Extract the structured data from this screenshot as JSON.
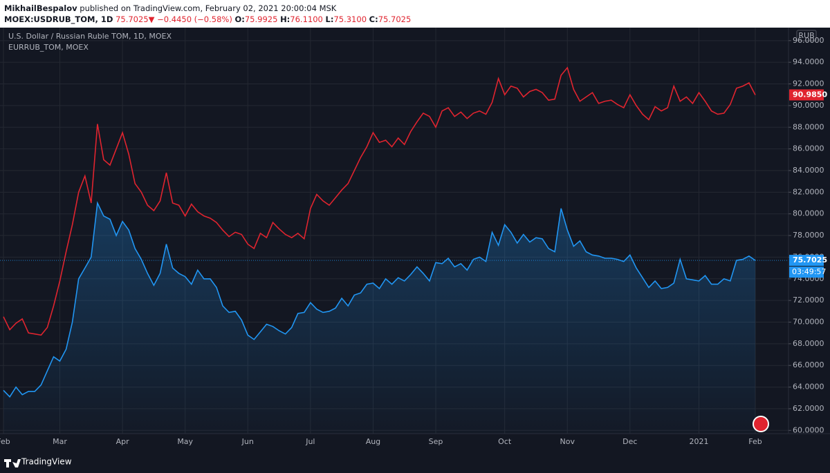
{
  "header": {
    "author": "MikhailBespalov",
    "published": "published on TradingView.com, February 02, 2021 20:00:04 MSK",
    "symbol": "MOEX:USDRUB_TOM, 1D",
    "last": "75.7025",
    "arrow": "▼",
    "change": "−0.4450 (−0.58%)",
    "ohlc": [
      {
        "label": "O:",
        "value": "75.9925"
      },
      {
        "label": "H:",
        "value": "76.1100"
      },
      {
        "label": "L:",
        "value": "75.3100"
      },
      {
        "label": "C:",
        "value": "75.7025"
      }
    ]
  },
  "footer": {
    "brand": "TradingView"
  },
  "chart_data": {
    "type": "line",
    "currency": "RUB",
    "countdown": "03:49:57",
    "categories": [
      "Feb",
      null,
      null,
      null,
      null,
      null,
      null,
      null,
      null,
      "Mar",
      null,
      null,
      null,
      null,
      null,
      null,
      null,
      null,
      null,
      "Apr",
      null,
      null,
      null,
      null,
      null,
      null,
      null,
      null,
      null,
      "May",
      null,
      null,
      null,
      null,
      null,
      null,
      null,
      null,
      null,
      "Jun",
      null,
      null,
      null,
      null,
      null,
      null,
      null,
      null,
      null,
      "Jul",
      null,
      null,
      null,
      null,
      null,
      null,
      null,
      null,
      null,
      "Aug",
      null,
      null,
      null,
      null,
      null,
      null,
      null,
      null,
      null,
      "Sep",
      null,
      null,
      null,
      null,
      null,
      null,
      null,
      null,
      null,
      null,
      "Oct",
      null,
      null,
      null,
      null,
      null,
      null,
      null,
      null,
      null,
      "Nov",
      null,
      null,
      null,
      null,
      null,
      null,
      null,
      null,
      null,
      "Dec",
      null,
      null,
      null,
      null,
      null,
      null,
      null,
      null,
      null,
      null,
      "2021",
      null,
      null,
      null,
      null,
      null,
      null,
      null,
      null,
      "Feb"
    ],
    "ylim": [
      59.7,
      97.2
    ],
    "yticks": [
      {
        "value": 60,
        "label": "60.0000"
      },
      {
        "value": 62,
        "label": "62.0000"
      },
      {
        "value": 64,
        "label": "64.0000"
      },
      {
        "value": 66,
        "label": "66.0000"
      },
      {
        "value": 68,
        "label": "68.0000"
      },
      {
        "value": 70,
        "label": "70.0000"
      },
      {
        "value": 72,
        "label": "72.0000"
      },
      {
        "value": 74,
        "label": "74.0000"
      },
      {
        "value": 76,
        "label": "76.0000"
      },
      {
        "value": 78,
        "label": "78.0000"
      },
      {
        "value": 80,
        "label": "80.0000"
      },
      {
        "value": 82,
        "label": "82.0000"
      },
      {
        "value": 84,
        "label": "84.0000"
      },
      {
        "value": 86,
        "label": "86.0000"
      },
      {
        "value": 88,
        "label": "88.0000"
      },
      {
        "value": 90,
        "label": "90.0000"
      },
      {
        "value": 92,
        "label": "92.0000"
      },
      {
        "value": 94,
        "label": "94.0000"
      },
      {
        "value": 96,
        "label": "96.0000"
      }
    ],
    "grid": true,
    "series": [
      {
        "name": "EURRUB_TOM, MOEX",
        "color": "#e0242f",
        "last_label": "90.9850",
        "values": [
          70.5,
          69.3,
          69.9,
          70.3,
          69.0,
          68.9,
          68.8,
          69.5,
          71.5,
          73.8,
          76.5,
          79,
          82,
          83.5,
          81,
          88.3,
          85,
          84.5,
          86,
          87.5,
          85.5,
          82.8,
          82,
          80.8,
          80.3,
          81.2,
          83.8,
          81,
          80.8,
          79.8,
          80.9,
          80.2,
          79.8,
          79.6,
          79.2,
          78.5,
          77.9,
          78.3,
          78.1,
          77.2,
          76.8,
          78.2,
          77.8,
          79.2,
          78.6,
          78.1,
          77.8,
          78.2,
          77.7,
          80.5,
          81.8,
          81.2,
          80.8,
          81.5,
          82.2,
          82.8,
          84,
          85.2,
          86.2,
          87.5,
          86.6,
          86.8,
          86.2,
          87,
          86.4,
          87.6,
          88.5,
          89.3,
          89,
          88,
          89.5,
          89.8,
          89,
          89.4,
          88.8,
          89.3,
          89.5,
          89.2,
          90.3,
          92.5,
          91,
          91.8,
          91.6,
          90.8,
          91.3,
          91.5,
          91.2,
          90.5,
          90.6,
          92.8,
          93.5,
          91.5,
          90.4,
          90.8,
          91.2,
          90.2,
          90.4,
          90.5,
          90.1,
          89.8,
          91,
          90,
          89.2,
          88.7,
          89.9,
          89.5,
          89.8,
          91.8,
          90.4,
          90.8,
          90.2,
          91.2,
          90.4,
          89.5,
          89.2,
          89.3,
          90.1,
          91.6,
          91.8,
          92.1,
          90.985
        ]
      },
      {
        "name": "U.S. Dollar / Russian Ruble TOM, 1D, MOEX",
        "color": "#2196f3",
        "last_label": "75.7025",
        "values": [
          63.7,
          63.1,
          64,
          63.3,
          63.6,
          63.6,
          64.2,
          65.5,
          66.8,
          66.4,
          67.5,
          70,
          74,
          75,
          76,
          81,
          79.8,
          79.5,
          78,
          79.3,
          78.5,
          76.8,
          75.8,
          74.5,
          73.4,
          74.5,
          77.2,
          75,
          74.5,
          74.2,
          73.5,
          74.8,
          74,
          74,
          73.2,
          71.5,
          70.9,
          71,
          70.2,
          68.8,
          68.4,
          69.1,
          69.8,
          69.6,
          69.2,
          68.9,
          69.5,
          70.8,
          70.9,
          71.8,
          71.2,
          70.9,
          71,
          71.3,
          72.2,
          71.5,
          72.5,
          72.7,
          73.5,
          73.6,
          73.1,
          74,
          73.5,
          74.1,
          73.8,
          74.4,
          75.1,
          74.5,
          73.8,
          75.5,
          75.4,
          75.9,
          75.1,
          75.4,
          74.8,
          75.8,
          76,
          75.6,
          78.3,
          77.1,
          79,
          78.3,
          77.3,
          78.1,
          77.4,
          77.8,
          77.7,
          76.8,
          76.5,
          80.5,
          78.5,
          77,
          77.5,
          76.5,
          76.2,
          76.1,
          75.9,
          75.9,
          75.8,
          75.6,
          76.2,
          75,
          74.1,
          73.2,
          73.8,
          73.1,
          73.2,
          73.6,
          75.8,
          74,
          73.9,
          73.8,
          74.3,
          73.5,
          73.5,
          74,
          73.8,
          75.7,
          75.8,
          76.1,
          75.7025
        ]
      }
    ]
  }
}
